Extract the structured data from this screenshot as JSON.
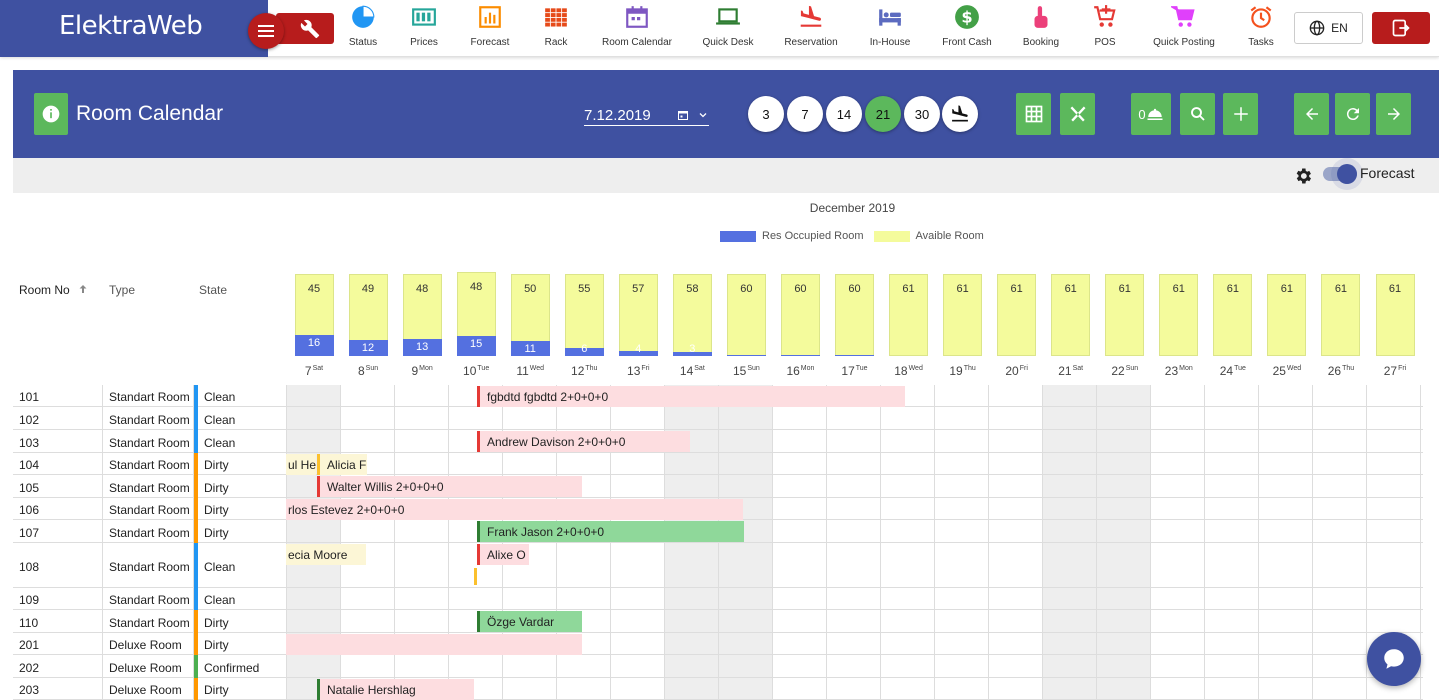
{
  "app": {
    "brand": "ElektraWeb"
  },
  "nav": [
    {
      "label": "Status",
      "icon": "pie-chart-icon",
      "color": "#2196f3"
    },
    {
      "label": "Prices",
      "icon": "price-tag-icon",
      "color": "#26a69a"
    },
    {
      "label": "Forecast",
      "icon": "bar-chart-icon",
      "color": "#fb8c00"
    },
    {
      "label": "Rack",
      "icon": "grid-icon",
      "color": "#e64a19"
    },
    {
      "label": "Room Calendar",
      "icon": "calendar-icon",
      "color": "#7e57c2"
    },
    {
      "label": "Quick Desk",
      "icon": "laptop-icon",
      "color": "#2e7d32"
    },
    {
      "label": "Reservation",
      "icon": "plane-landing-icon",
      "color": "#e53935"
    },
    {
      "label": "In-House",
      "icon": "bed-icon",
      "color": "#5c6bc0"
    },
    {
      "label": "Front Cash",
      "icon": "dollar-icon",
      "color": "#43a047"
    },
    {
      "label": "Booking",
      "icon": "hand-pointer-icon",
      "color": "#ec407a"
    },
    {
      "label": "POS",
      "icon": "cart-plus-icon",
      "color": "#e53935"
    },
    {
      "label": "Quick Posting",
      "icon": "cart-icon",
      "color": "#e040fb"
    },
    {
      "label": "Tasks",
      "icon": "alarm-icon",
      "color": "#f4511e"
    }
  ],
  "language": "EN",
  "header": {
    "title": "Room Calendar",
    "date": "7.12.2019",
    "ranges": [
      "3",
      "7",
      "14",
      "21",
      "30"
    ],
    "active_range": "21",
    "arrivals_count": "0"
  },
  "toolbar": {
    "forecast_label": "Forecast"
  },
  "columns": {
    "room_no": "Room No",
    "type": "Type",
    "state": "State"
  },
  "colors": {
    "accent": "#3f51a1",
    "green": "#5cb85c",
    "danger": "#b71c1c",
    "occupied": "#5470e0",
    "available": "#f4fb9c",
    "state_clean": "#2196f3",
    "state_dirty": "#ff9800",
    "state_confirmed": "#4caf50"
  },
  "chart_data": {
    "type": "bar",
    "title": "December 2019",
    "legend": [
      "Res Occupied Room",
      "Avaible Room"
    ],
    "legend_position": "top",
    "categories": [
      "7Sat",
      "8Sun",
      "9Mon",
      "10Tue",
      "11Wed",
      "12Thu",
      "13Fri",
      "14Sat",
      "15Sun",
      "16Mon",
      "17Tue",
      "18Wed",
      "19Thu",
      "20Fri",
      "21Sat",
      "22Sun",
      "23Mon",
      "24Tue",
      "25Wed",
      "26Thu",
      "27Fri"
    ],
    "days": [
      {
        "d": "7",
        "w": "Sat"
      },
      {
        "d": "8",
        "w": "Sun"
      },
      {
        "d": "9",
        "w": "Mon"
      },
      {
        "d": "10",
        "w": "Tue"
      },
      {
        "d": "11",
        "w": "Wed"
      },
      {
        "d": "12",
        "w": "Thu"
      },
      {
        "d": "13",
        "w": "Fri"
      },
      {
        "d": "14",
        "w": "Sat"
      },
      {
        "d": "15",
        "w": "Sun"
      },
      {
        "d": "16",
        "w": "Mon"
      },
      {
        "d": "17",
        "w": "Tue"
      },
      {
        "d": "18",
        "w": "Wed"
      },
      {
        "d": "19",
        "w": "Thu"
      },
      {
        "d": "20",
        "w": "Fri"
      },
      {
        "d": "21",
        "w": "Sat"
      },
      {
        "d": "22",
        "w": "Sun"
      },
      {
        "d": "23",
        "w": "Mon"
      },
      {
        "d": "24",
        "w": "Tue"
      },
      {
        "d": "25",
        "w": "Wed"
      },
      {
        "d": "26",
        "w": "Thu"
      },
      {
        "d": "27",
        "w": "Fri"
      }
    ],
    "series": [
      {
        "name": "Res Occupied Room",
        "values": [
          16,
          12,
          13,
          15,
          11,
          6,
          4,
          3,
          1,
          1,
          1,
          0,
          0,
          0,
          0,
          0,
          0,
          0,
          0,
          0,
          0
        ]
      },
      {
        "name": "Avaible Room",
        "values": [
          45,
          49,
          48,
          48,
          50,
          55,
          57,
          58,
          60,
          60,
          60,
          61,
          61,
          61,
          61,
          61,
          61,
          61,
          61,
          61,
          61
        ]
      }
    ],
    "ylim": [
      0,
      62
    ]
  },
  "rooms": [
    {
      "no": "101",
      "type": "Standart Room",
      "state": "Clean",
      "state_color": "#2196f3"
    },
    {
      "no": "102",
      "type": "Standart Room",
      "state": "Clean",
      "state_color": "#2196f3"
    },
    {
      "no": "103",
      "type": "Standart Room",
      "state": "Clean",
      "state_color": "#2196f3"
    },
    {
      "no": "104",
      "type": "Standart Room",
      "state": "Dirty",
      "state_color": "#ff9800"
    },
    {
      "no": "105",
      "type": "Standart Room",
      "state": "Dirty",
      "state_color": "#ff9800"
    },
    {
      "no": "106",
      "type": "Standart Room",
      "state": "Dirty",
      "state_color": "#ff9800"
    },
    {
      "no": "107",
      "type": "Standart Room",
      "state": "Dirty",
      "state_color": "#ff9800"
    },
    {
      "no": "108",
      "type": "Standart Room",
      "state": "Clean",
      "state_color": "#2196f3"
    },
    {
      "no": "109",
      "type": "Standart Room",
      "state": "Clean",
      "state_color": "#2196f3"
    },
    {
      "no": "110",
      "type": "Standart Room",
      "state": "Dirty",
      "state_color": "#ff9800"
    },
    {
      "no": "201",
      "type": "Deluxe Room",
      "state": "Dirty",
      "state_color": "#ff9800"
    },
    {
      "no": "202",
      "type": "Deluxe Room",
      "state": "Confirmed",
      "state_color": "#4caf50"
    },
    {
      "no": "203",
      "type": "Deluxe Room",
      "state": "Dirty",
      "state_color": "#ff9800"
    }
  ],
  "reservations": [
    {
      "row": 0,
      "label": "fgbdtd fgbdtd 2+0+0+0",
      "style": "pink",
      "edge": "#e53935"
    },
    {
      "row": 2,
      "label": "Andrew Davison 2+0+0+0",
      "style": "pink",
      "edge": "#e53935"
    },
    {
      "row": 3,
      "label": "ul He",
      "style": "cream",
      "edge": ""
    },
    {
      "row": 3,
      "label": "Alicia F",
      "style": "cream",
      "edge": "#fbc02d"
    },
    {
      "row": 4,
      "label": "Walter Willis 2+0+0+0",
      "style": "pink",
      "edge": "#e53935"
    },
    {
      "row": 5,
      "label": "rlos Estevez 2+0+0+0",
      "style": "pink",
      "edge": ""
    },
    {
      "row": 6,
      "label": "Frank Jason 2+0+0+0",
      "style": "green",
      "edge": "#2e7d32"
    },
    {
      "row": 7,
      "label": "ecia Moore",
      "style": "cream",
      "edge": ""
    },
    {
      "row": 7,
      "label": "Alixe O",
      "style": "pink",
      "edge": "#e53935"
    },
    {
      "row": 9,
      "label": "Özge Vardar",
      "style": "green",
      "edge": "#2e7d32"
    },
    {
      "row": 10,
      "label": "",
      "style": "pink",
      "edge": ""
    },
    {
      "row": 12,
      "label": "Natalie Hershlag",
      "style": "pink",
      "edge": "#2e7d32"
    }
  ]
}
